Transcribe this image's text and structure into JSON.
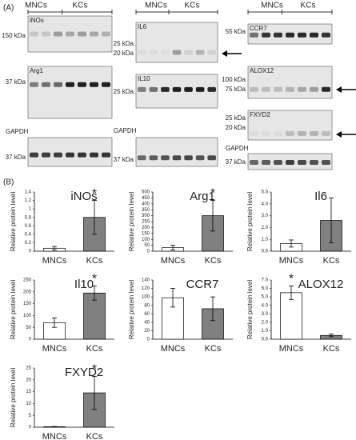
{
  "panels": [
    "(A)",
    "(B)"
  ],
  "blots": [
    {
      "header": [
        "MNCs",
        "KCs"
      ],
      "strips": [
        {
          "name": "iNOs",
          "markers": [
            "150 kDa"
          ]
        },
        {
          "name": "Arg1",
          "markers": [
            "37 kDa"
          ]
        },
        {
          "name": "GAPDH",
          "markers": [
            "37 kDa"
          ]
        }
      ]
    },
    {
      "header": [
        "MNCs",
        "KCs"
      ],
      "strips": [
        {
          "name": "IL6",
          "markers": [
            "25 kDa",
            "20 kDa"
          ]
        },
        {
          "name": "IL10",
          "markers": [
            "25 kDa"
          ]
        },
        {
          "name": "GAPDH",
          "markers": [
            "37 kDa"
          ]
        }
      ]
    },
    {
      "header": [
        "MNCs",
        "KCs"
      ],
      "strips": [
        {
          "name": "CCR7",
          "markers": [
            "55 kDa"
          ]
        },
        {
          "name": "ALOX12",
          "markers": [
            "100 kDa",
            "75 kDa"
          ]
        },
        {
          "name": "FXYD2",
          "markers": [
            "25 kDa",
            "20 kDa"
          ]
        },
        {
          "name": "GAPDH",
          "markers": [
            "37 kDa"
          ]
        }
      ]
    }
  ],
  "chart_data": [
    {
      "type": "bar",
      "title": "iNOs",
      "y_label": "Relative protein level",
      "categories": [
        "MNCs",
        "KCs"
      ],
      "colors": [
        "#ffffff",
        "#808080"
      ],
      "values": [
        0.07,
        0.8
      ],
      "errors": [
        0.04,
        0.4
      ],
      "ylim": [
        0,
        1.4
      ],
      "yticks": [
        0,
        0.2,
        0.4,
        0.6,
        0.8,
        1,
        1.2,
        1.4
      ],
      "annotations": [
        {
          "text": "*",
          "x": "KCs"
        }
      ]
    },
    {
      "type": "bar",
      "title": "Arg1",
      "y_label": "Relative protein level",
      "categories": [
        "MNCs",
        "KCs"
      ],
      "colors": [
        "#ffffff",
        "#808080"
      ],
      "values": [
        30,
        300
      ],
      "errors": [
        20,
        130
      ],
      "ylim": [
        0,
        500
      ],
      "yticks": [
        0,
        50,
        100,
        150,
        200,
        250,
        300,
        350,
        400,
        450,
        500
      ],
      "annotations": [
        {
          "text": "*",
          "x": "KCs"
        }
      ]
    },
    {
      "type": "bar",
      "title": "Il6",
      "y_label": "Relative protein level",
      "categories": [
        "MNCs",
        "KCs"
      ],
      "colors": [
        "#ffffff",
        "#808080"
      ],
      "values": [
        0.65,
        2.6
      ],
      "errors": [
        0.3,
        1.9
      ],
      "ylim": [
        0,
        5
      ],
      "yticks": [
        {
          "value": 0,
          "label": "0.0"
        },
        {
          "value": 1,
          "label": "1.0"
        },
        {
          "value": 2,
          "label": "2.0"
        },
        {
          "value": 3,
          "label": "3.0"
        },
        {
          "value": 4,
          "label": "4.0"
        },
        {
          "value": 5,
          "label": "5.0"
        }
      ],
      "annotations": []
    },
    {
      "type": "bar",
      "title": "Il10",
      "y_label": "Relative protein level",
      "categories": [
        "MNCs",
        "KCs"
      ],
      "colors": [
        "#ffffff",
        "#808080"
      ],
      "values": [
        70,
        195
      ],
      "errors": [
        20,
        30
      ],
      "ylim": [
        0,
        250
      ],
      "yticks": [
        0,
        50,
        100,
        150,
        200,
        250
      ],
      "annotations": [
        {
          "text": "*",
          "x": "KCs"
        }
      ]
    },
    {
      "type": "bar",
      "title": "CCR7",
      "y_label": "Relative protein level",
      "categories": [
        "MNCs",
        "KCs"
      ],
      "colors": [
        "#ffffff",
        "#808080"
      ],
      "values": [
        98,
        72
      ],
      "errors": [
        22,
        28
      ],
      "ylim": [
        0,
        140
      ],
      "yticks": [
        0,
        20,
        40,
        60,
        80,
        100,
        120,
        140
      ],
      "annotations": []
    },
    {
      "type": "bar",
      "title": "ALOX12",
      "y_label": "Relative protein level",
      "categories": [
        "MNCs",
        "KCs"
      ],
      "colors": [
        "#ffffff",
        "#808080"
      ],
      "values": [
        5.5,
        0.45
      ],
      "errors": [
        0.8,
        0.15
      ],
      "ylim": [
        0,
        7
      ],
      "yticks": [
        {
          "value": 0,
          "label": "0.0"
        },
        {
          "value": 1,
          "label": "1.0"
        },
        {
          "value": 2,
          "label": "2.0"
        },
        {
          "value": 3,
          "label": "3.0"
        },
        {
          "value": 4,
          "label": "4.0"
        },
        {
          "value": 5,
          "label": "5.0"
        },
        {
          "value": 6,
          "label": "6.0"
        },
        {
          "value": 7,
          "label": "7.0"
        }
      ],
      "annotations": [
        {
          "text": "*",
          "x": "MNCs"
        }
      ]
    },
    {
      "type": "bar",
      "title": "FXYD2",
      "y_label": "Relative protein level",
      "categories": [
        "MNCs",
        "KCs"
      ],
      "colors": [
        "#ffffff",
        "#808080"
      ],
      "values": [
        0.2,
        14.5
      ],
      "errors": [
        0.1,
        7
      ],
      "ylim": [
        0,
        25
      ],
      "yticks": [
        0,
        5,
        10,
        15,
        20,
        25
      ],
      "annotations": [
        {
          "text": "*",
          "x": "KCs"
        }
      ]
    }
  ]
}
